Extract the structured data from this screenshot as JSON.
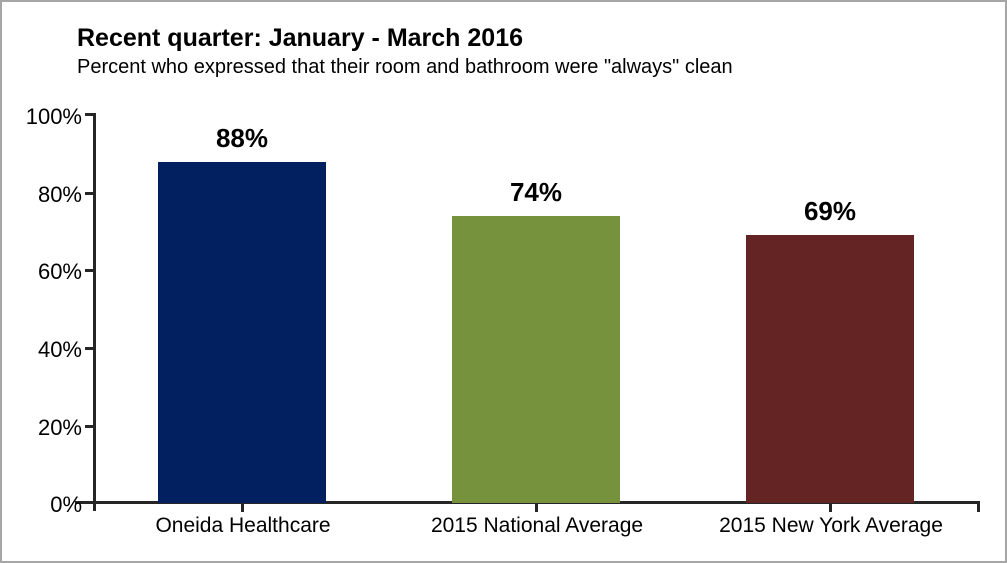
{
  "title": "Recent quarter: January - March 2016",
  "subtitle": "Percent who expressed that their room and bathroom were \"always\" clean",
  "chart_data": {
    "type": "bar",
    "title": "Recent quarter: January - March 2016",
    "subtitle": "Percent who expressed that their room and bathroom were \"always\" clean",
    "categories": [
      "Oneida Healthcare",
      "2015 National Average",
      "2015 New York Average"
    ],
    "values": [
      88,
      74,
      69
    ],
    "value_labels": [
      "88%",
      "74%",
      "69%"
    ],
    "bar_colors": [
      "#022060",
      "#76923c",
      "#632423"
    ],
    "xlabel": "",
    "ylabel": "",
    "ylim": [
      0,
      100
    ],
    "ytick_interval": 20,
    "ytick_labels": [
      "100%",
      "80%",
      "60%",
      "40%",
      "20%",
      "0%"
    ],
    "grid": false,
    "legend_position": "none",
    "axis_color": "#262626"
  }
}
